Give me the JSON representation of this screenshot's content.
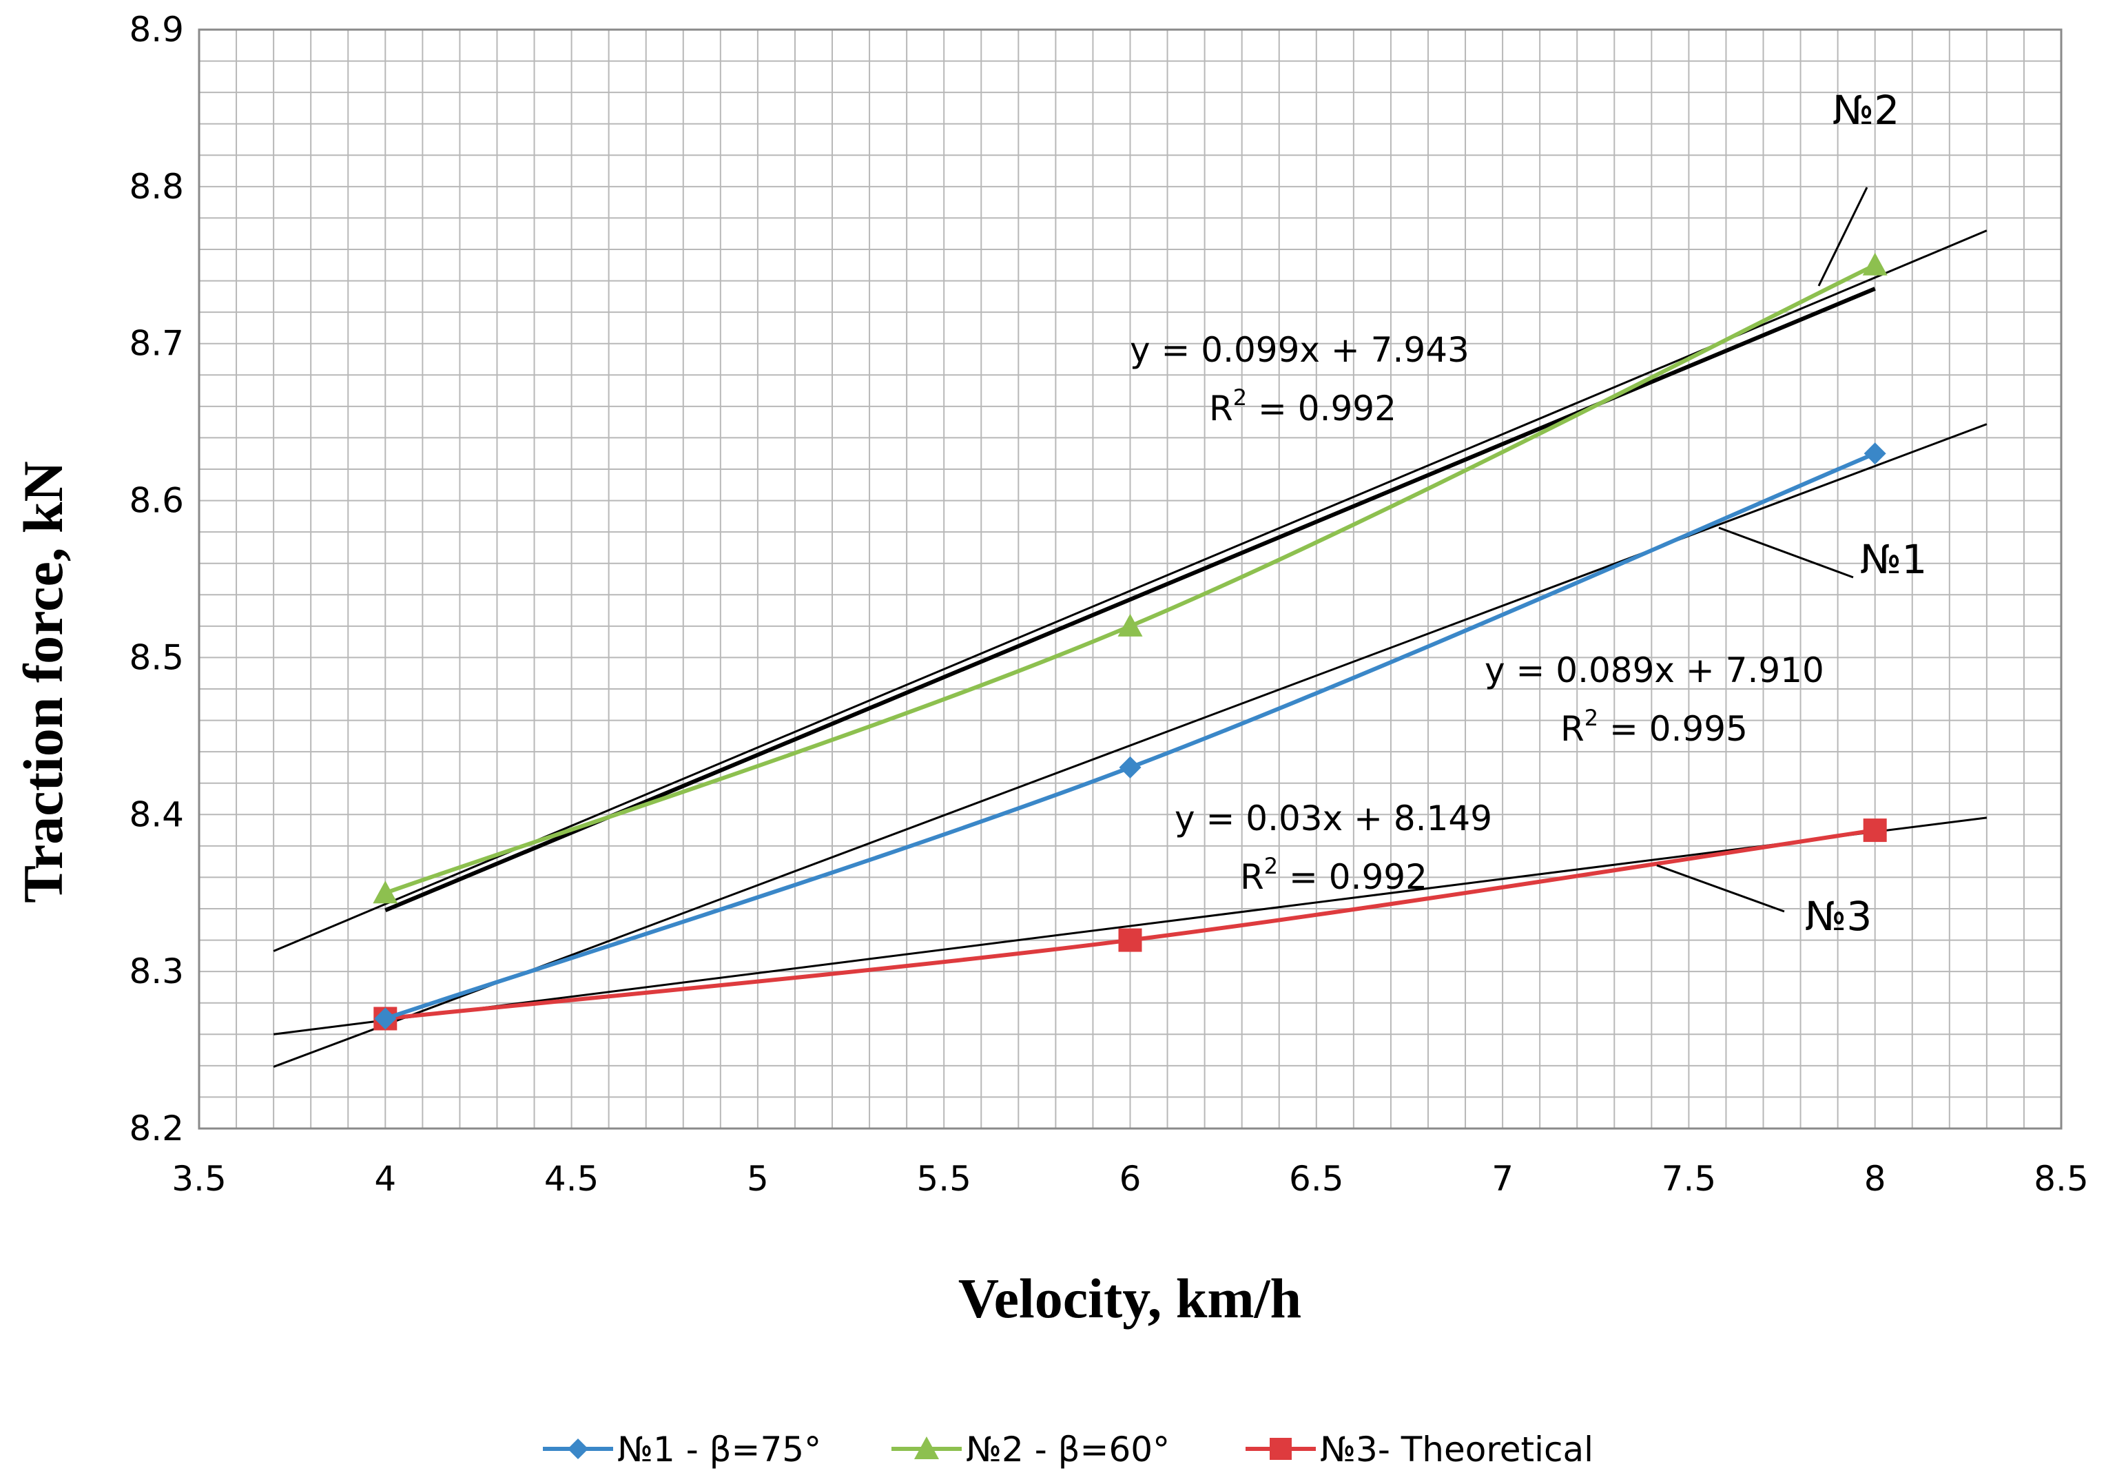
{
  "chart_data": {
    "type": "line",
    "xlabel": "Velocity, km/h",
    "ylabel": "Traction force, kN",
    "xlim": [
      3.5,
      8.5
    ],
    "ylim": [
      8.2,
      8.9
    ],
    "x_ticks": [
      "3.5",
      "4",
      "4.5",
      "5",
      "5.5",
      "6",
      "6.5",
      "7",
      "7.5",
      "8",
      "8.5"
    ],
    "y_ticks": [
      "8.2",
      "8.3",
      "8.4",
      "8.5",
      "8.6",
      "8.7",
      "8.8",
      "8.9"
    ],
    "x_tick_values": [
      3.5,
      4,
      4.5,
      5,
      5.5,
      6,
      6.5,
      7,
      7.5,
      8,
      8.5
    ],
    "y_tick_values": [
      8.2,
      8.3,
      8.4,
      8.5,
      8.6,
      8.7,
      8.8,
      8.9
    ],
    "grid": true,
    "series": [
      {
        "name": "№1 - β=75°",
        "color": "#3a87c8",
        "marker": "diamond",
        "x": [
          4,
          6,
          8
        ],
        "values": [
          8.27,
          8.43,
          8.63
        ]
      },
      {
        "name": "№2 - β=60°",
        "color": "#8dc04f",
        "marker": "triangle",
        "x": [
          4,
          6,
          8
        ],
        "values": [
          8.35,
          8.52,
          8.75
        ]
      },
      {
        "name": "№3- Theoretical",
        "color": "#de3b3e",
        "marker": "square",
        "x": [
          4,
          6,
          8
        ],
        "values": [
          8.27,
          8.32,
          8.39
        ]
      }
    ],
    "trendlines": [
      {
        "series": "№1",
        "slope": 0.089,
        "intercept": 7.91,
        "x_range": [
          3.7,
          8.3
        ],
        "equation": "y = 0.089x + 7.910",
        "r2_prefix": "R",
        "r2_sup": "2",
        "r2_value": " = 0.995",
        "tag": "№1"
      },
      {
        "series": "№2",
        "slope": 0.099,
        "intercept": 7.943,
        "x_range": [
          4,
          8
        ],
        "equation": "y = 0.099x + 7.943",
        "r2_prefix": "R",
        "r2_sup": "2",
        "r2_value": " = 0.992",
        "tag": "№2"
      },
      {
        "series": "№3",
        "slope": 0.03,
        "intercept": 8.149,
        "x_range": [
          3.7,
          8.3
        ],
        "equation": "y = 0.03x + 8.149",
        "r2_prefix": "R",
        "r2_sup": "2",
        "r2_value": " = 0.992",
        "tag": "№3"
      }
    ],
    "extra_fit_line": {
      "x": [
        3.7,
        8.3
      ],
      "y": [
        8.313,
        8.772
      ]
    },
    "legend_position": "bottom"
  }
}
